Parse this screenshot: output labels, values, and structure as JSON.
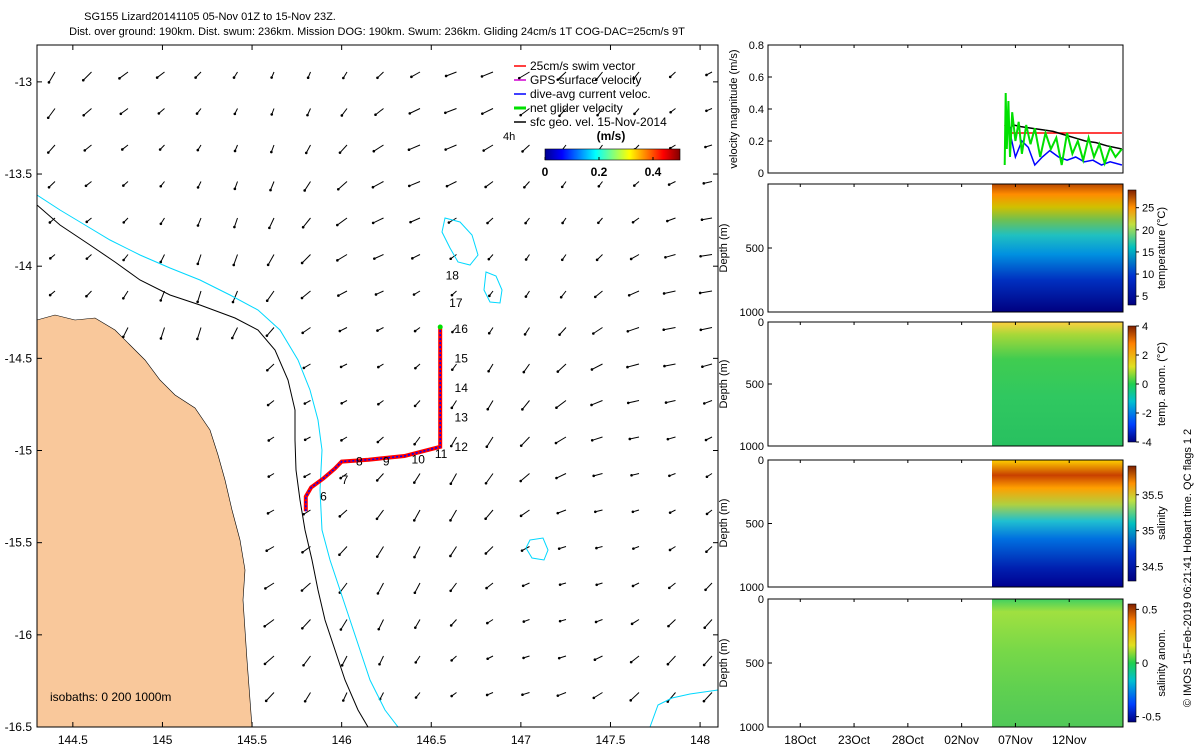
{
  "header": {
    "title": "SG155 Lizard20141105 05-Nov 01Z to 15-Nov 23Z.",
    "subtitle": "Dist. over ground: 190km. Dist. swum: 236km. Mission DOG: 190km. Swum: 236km. Gliding 24cm/s 1T COG-DAC=25cm/s 9T"
  },
  "colors": {
    "land": "#f9c89b",
    "isobath_200": "#000000",
    "isobath_1000": "#00d8ff",
    "swim_vector": "#ff0000",
    "gps_velocity": "#d000d0",
    "dac": "#0000ff",
    "net_velocity": "#00e000",
    "geo_velocity": "#000000"
  },
  "chart_data": [
    {
      "type": "map",
      "name": "track-map",
      "xlim": [
        144.3,
        148.1
      ],
      "ylim": [
        -16.5,
        -12.8
      ],
      "x_ticks": [
        "144.5",
        "145",
        "145.5",
        "146",
        "146.5",
        "147",
        "147.5",
        "148"
      ],
      "x_tick_values": [
        144.5,
        145,
        145.5,
        146,
        146.5,
        147,
        147.5,
        148
      ],
      "y_ticks": [
        "-13",
        "-13.5",
        "-14",
        "-14.5",
        "-15",
        "-15.5",
        "-16",
        "-16.5"
      ],
      "y_tick_values": [
        -13,
        -13.5,
        -14,
        -14.5,
        -15,
        -15.5,
        -16,
        -16.5
      ],
      "legend": {
        "position": "top-right",
        "entries": [
          "25cm/s swim vector",
          "GPS surface velocity",
          "dive-avg current veloc.",
          "net glider velocity",
          "sfc geo. vel. 15-Nov-2014"
        ],
        "entry_colors": [
          "#ff0000",
          "#d000d0",
          "#0000ff",
          "#00e000",
          "#000000"
        ]
      },
      "colorbar": {
        "label": "(m/s)",
        "side_label": "4h",
        "ticks": [
          "0",
          "0.2",
          "0.4"
        ],
        "tick_values": [
          0,
          0.2,
          0.4
        ],
        "range": [
          0,
          0.5
        ]
      },
      "isobath_label": "isobaths: 0   200  1000m",
      "track": [
        [
          145.8,
          -15.33
        ],
        [
          145.8,
          -15.25
        ],
        [
          145.83,
          -15.2
        ],
        [
          145.9,
          -15.15
        ],
        [
          145.96,
          -15.1
        ],
        [
          146.0,
          -15.06
        ],
        [
          146.15,
          -15.05
        ],
        [
          146.35,
          -15.03
        ],
        [
          146.55,
          -14.98
        ],
        [
          146.55,
          -14.6
        ],
        [
          146.55,
          -14.33
        ]
      ],
      "day_labels": [
        {
          "text": "6",
          "lon": 145.88,
          "lat": -15.25
        },
        {
          "text": "7",
          "lon": 146.0,
          "lat": -15.16
        },
        {
          "text": "8",
          "lon": 146.08,
          "lat": -15.06
        },
        {
          "text": "9",
          "lon": 146.23,
          "lat": -15.06
        },
        {
          "text": "10",
          "lon": 146.39,
          "lat": -15.05
        },
        {
          "text": "11",
          "lon": 146.52,
          "lat": -15.02
        },
        {
          "text": "12",
          "lon": 146.63,
          "lat": -14.98
        },
        {
          "text": "13",
          "lon": 146.63,
          "lat": -14.82
        },
        {
          "text": "14",
          "lon": 146.63,
          "lat": -14.66
        },
        {
          "text": "15",
          "lon": 146.63,
          "lat": -14.5
        },
        {
          "text": "16",
          "lon": 146.63,
          "lat": -14.34
        },
        {
          "text": "17",
          "lon": 146.6,
          "lat": -14.2
        },
        {
          "text": "18",
          "lon": 146.58,
          "lat": -14.05
        }
      ]
    },
    {
      "type": "line",
      "name": "velocity-panel",
      "ylabel": "velocity magnitude (m/s)",
      "ylim": [
        0,
        0.8
      ],
      "y_ticks": [
        "0",
        "0.2",
        "0.4",
        "0.6",
        "0.8"
      ],
      "y_tick_values": [
        0,
        0.2,
        0.4,
        0.6,
        0.8
      ],
      "xlim": [
        15,
        48
      ],
      "series": [
        {
          "color": "#ff0000",
          "x": [
            37.0,
            37.4,
            38,
            40,
            42,
            44,
            46,
            47.9
          ],
          "values": [
            0.3,
            0.25,
            0.25,
            0.25,
            0.25,
            0.25,
            0.25,
            0.25
          ]
        },
        {
          "color": "#000000",
          "x": [
            37.2,
            37.8,
            38.5,
            39.5,
            40.5,
            41.5,
            42.5,
            43.5,
            44.5,
            45.5,
            46.5,
            47.9
          ],
          "values": [
            0.26,
            0.3,
            0.29,
            0.28,
            0.27,
            0.26,
            0.24,
            0.22,
            0.2,
            0.19,
            0.17,
            0.15
          ]
        },
        {
          "color": "#0000ff",
          "x": [
            37.1,
            37.3,
            37.6,
            38,
            38.6,
            39.2,
            39.8,
            40.5,
            41.2,
            42,
            42.8,
            43.6,
            44.4,
            45.2,
            46,
            46.8,
            47.9
          ],
          "values": [
            0.28,
            0.35,
            0.22,
            0.1,
            0.2,
            0.16,
            0.05,
            0.1,
            0.14,
            0.1,
            0.08,
            0.1,
            0.07,
            0.08,
            0.05,
            0.07,
            0.05
          ]
        },
        {
          "color": "#00e000",
          "x": [
            37.0,
            37.1,
            37.2,
            37.35,
            37.5,
            37.7,
            38,
            38.3,
            38.6,
            39,
            39.4,
            39.8,
            40.3,
            40.8,
            41.3,
            41.8,
            42.3,
            42.8,
            43.3,
            43.8,
            44.3,
            44.8,
            45.3,
            45.8,
            46.3,
            46.8,
            47.3,
            47.9
          ],
          "values": [
            0.05,
            0.5,
            0.15,
            0.45,
            0.1,
            0.38,
            0.2,
            0.32,
            0.12,
            0.3,
            0.18,
            0.28,
            0.1,
            0.25,
            0.15,
            0.22,
            0.05,
            0.25,
            0.12,
            0.2,
            0.08,
            0.22,
            0.1,
            0.18,
            0.06,
            0.16,
            0.1,
            0.15
          ]
        }
      ]
    },
    {
      "type": "heatmap",
      "name": "temperature-panel",
      "ylabel": "Depth (m)",
      "colorbar_label": "temperature (°C)",
      "colorbar_ticks": [
        "25",
        "20",
        "15",
        "10",
        "5"
      ],
      "colorbar_tick_values": [
        25,
        20,
        15,
        10,
        5
      ],
      "colorbar_range": [
        3,
        29
      ],
      "y_ticks": [
        "500",
        "1000"
      ],
      "y_tick_values": [
        500,
        1000
      ],
      "ylim": [
        1000,
        0
      ],
      "xlim": [
        15,
        48
      ],
      "data_x_range": [
        37.0,
        48.0
      ]
    },
    {
      "type": "heatmap",
      "name": "temp-anomaly-panel",
      "ylabel": "Depth (m)",
      "colorbar_label": "temp. anom. (°C)",
      "colorbar_ticks": [
        "4",
        "2",
        "0",
        "-2",
        "-4"
      ],
      "colorbar_tick_values": [
        4,
        2,
        0,
        -2,
        -4
      ],
      "colorbar_range": [
        -4,
        4
      ],
      "y_ticks": [
        "0",
        "500",
        "1000"
      ],
      "y_tick_values": [
        0,
        500,
        1000
      ],
      "ylim": [
        1000,
        0
      ],
      "xlim": [
        15,
        48
      ],
      "data_x_range": [
        37.0,
        48.0
      ]
    },
    {
      "type": "heatmap",
      "name": "salinity-panel",
      "ylabel": "Depth (m)",
      "colorbar_label": "salinity",
      "colorbar_ticks": [
        "35.5",
        "35",
        "34.5"
      ],
      "colorbar_tick_values": [
        35.5,
        35,
        34.5
      ],
      "colorbar_range": [
        34.3,
        35.9
      ],
      "y_ticks": [
        "0",
        "500",
        "1000"
      ],
      "y_tick_values": [
        0,
        500,
        1000
      ],
      "ylim": [
        1000,
        0
      ],
      "xlim": [
        15,
        48
      ],
      "data_x_range": [
        37.0,
        48.0
      ]
    },
    {
      "type": "heatmap",
      "name": "salinity-anomaly-panel",
      "ylabel": "Depth (m)",
      "colorbar_label": "salinity anom.",
      "colorbar_ticks": [
        "0.5",
        "0",
        "-0.5"
      ],
      "colorbar_tick_values": [
        0.5,
        0,
        -0.5
      ],
      "colorbar_range": [
        -0.55,
        0.55
      ],
      "y_ticks": [
        "0",
        "500",
        "1000"
      ],
      "y_tick_values": [
        0,
        500,
        1000
      ],
      "ylim": [
        1000,
        0
      ],
      "xlim": [
        15,
        48
      ],
      "data_x_range": [
        37.0,
        48.0
      ],
      "x_ticks": [
        "18Oct",
        "23Oct",
        "28Oct",
        "02Nov",
        "07Nov",
        "12Nov"
      ],
      "x_tick_values": [
        18,
        23,
        28,
        33,
        38,
        43
      ]
    }
  ],
  "footer": {
    "credit": "© IMOS 15-Feb-2019 06:21:41 Hobart time. QC flags 1  2"
  }
}
